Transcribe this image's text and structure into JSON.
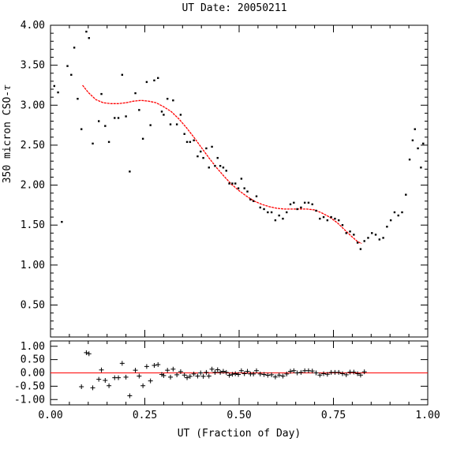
{
  "chart_data": [
    {
      "type": "scatter",
      "title": "UT Date: 20050211",
      "xlabel": "UT (Fraction of Day)",
      "ylabel": "350 micron CSO-",
      "ylabel_symbol": "τ",
      "xlim": [
        0.0,
        1.0
      ],
      "ylim": [
        0.1,
        4.0
      ],
      "x_ticks": [
        "0.00",
        "0.25",
        "0.50",
        "0.75",
        "1.00"
      ],
      "y_ticks": [
        "0.50",
        "1.00",
        "1.50",
        "2.00",
        "2.50",
        "3.00",
        "3.50",
        "4.00"
      ],
      "grid": false,
      "series": [
        {
          "role": "measurements",
          "marker": "dot",
          "color": "#000000",
          "points": [
            [
              0.01,
              3.24
            ],
            [
              0.02,
              3.16
            ],
            [
              0.03,
              1.54
            ],
            [
              0.045,
              3.49
            ],
            [
              0.055,
              3.38
            ],
            [
              0.063,
              3.72
            ],
            [
              0.072,
              3.08
            ],
            [
              0.082,
              2.7
            ],
            [
              0.095,
              3.92
            ],
            [
              0.102,
              3.84
            ],
            [
              0.112,
              2.52
            ],
            [
              0.128,
              2.8
            ],
            [
              0.135,
              3.14
            ],
            [
              0.145,
              2.74
            ],
            [
              0.155,
              2.54
            ],
            [
              0.17,
              2.84
            ],
            [
              0.18,
              2.84
            ],
            [
              0.19,
              3.38
            ],
            [
              0.2,
              2.86
            ],
            [
              0.21,
              2.17
            ],
            [
              0.225,
              3.15
            ],
            [
              0.235,
              2.94
            ],
            [
              0.245,
              2.58
            ],
            [
              0.255,
              3.29
            ],
            [
              0.265,
              2.75
            ],
            [
              0.275,
              3.31
            ],
            [
              0.285,
              3.34
            ],
            [
              0.295,
              2.92
            ],
            [
              0.3,
              2.88
            ],
            [
              0.31,
              3.08
            ],
            [
              0.318,
              2.76
            ],
            [
              0.325,
              3.06
            ],
            [
              0.335,
              2.76
            ],
            [
              0.345,
              2.88
            ],
            [
              0.355,
              2.64
            ],
            [
              0.362,
              2.54
            ],
            [
              0.37,
              2.54
            ],
            [
              0.38,
              2.56
            ],
            [
              0.39,
              2.36
            ],
            [
              0.398,
              2.42
            ],
            [
              0.405,
              2.34
            ],
            [
              0.413,
              2.46
            ],
            [
              0.42,
              2.22
            ],
            [
              0.428,
              2.48
            ],
            [
              0.436,
              2.24
            ],
            [
              0.443,
              2.34
            ],
            [
              0.45,
              2.24
            ],
            [
              0.458,
              2.22
            ],
            [
              0.466,
              2.18
            ],
            [
              0.474,
              2.02
            ],
            [
              0.482,
              2.02
            ],
            [
              0.49,
              2.02
            ],
            [
              0.498,
              1.96
            ],
            [
              0.506,
              2.08
            ],
            [
              0.514,
              1.96
            ],
            [
              0.522,
              1.92
            ],
            [
              0.53,
              1.82
            ],
            [
              0.538,
              1.8
            ],
            [
              0.546,
              1.86
            ],
            [
              0.556,
              1.72
            ],
            [
              0.566,
              1.7
            ],
            [
              0.576,
              1.66
            ],
            [
              0.586,
              1.66
            ],
            [
              0.596,
              1.56
            ],
            [
              0.606,
              1.62
            ],
            [
              0.616,
              1.58
            ],
            [
              0.626,
              1.66
            ],
            [
              0.636,
              1.76
            ],
            [
              0.645,
              1.78
            ],
            [
              0.654,
              1.7
            ],
            [
              0.664,
              1.72
            ],
            [
              0.674,
              1.78
            ],
            [
              0.684,
              1.78
            ],
            [
              0.694,
              1.76
            ],
            [
              0.704,
              1.68
            ],
            [
              0.714,
              1.58
            ],
            [
              0.724,
              1.6
            ],
            [
              0.734,
              1.56
            ],
            [
              0.744,
              1.6
            ],
            [
              0.754,
              1.58
            ],
            [
              0.764,
              1.56
            ],
            [
              0.774,
              1.5
            ],
            [
              0.784,
              1.4
            ],
            [
              0.794,
              1.42
            ],
            [
              0.804,
              1.38
            ],
            [
              0.814,
              1.28
            ],
            [
              0.822,
              1.2
            ],
            [
              0.832,
              1.3
            ],
            [
              0.842,
              1.34
            ],
            [
              0.852,
              1.4
            ],
            [
              0.862,
              1.38
            ],
            [
              0.872,
              1.32
            ],
            [
              0.882,
              1.34
            ],
            [
              0.892,
              1.48
            ],
            [
              0.902,
              1.56
            ],
            [
              0.912,
              1.66
            ],
            [
              0.922,
              1.62
            ],
            [
              0.932,
              1.66
            ],
            [
              0.942,
              1.88
            ],
            [
              0.952,
              2.32
            ],
            [
              0.96,
              2.56
            ],
            [
              0.966,
              2.7
            ],
            [
              0.974,
              2.46
            ],
            [
              0.982,
              2.22
            ],
            [
              0.988,
              2.52
            ]
          ]
        },
        {
          "role": "fit",
          "marker": "line",
          "color": "#ff0000",
          "x": [
            0.085,
            0.1,
            0.12,
            0.14,
            0.16,
            0.18,
            0.2,
            0.22,
            0.24,
            0.26,
            0.28,
            0.3,
            0.32,
            0.34,
            0.36,
            0.38,
            0.4,
            0.42,
            0.44,
            0.46,
            0.48,
            0.5,
            0.52,
            0.54,
            0.56,
            0.58,
            0.6,
            0.62,
            0.64,
            0.66,
            0.68,
            0.7,
            0.72,
            0.74,
            0.76,
            0.78,
            0.8,
            0.815,
            0.825
          ],
          "y": [
            3.25,
            3.16,
            3.07,
            3.03,
            3.02,
            3.02,
            3.03,
            3.05,
            3.06,
            3.05,
            3.03,
            2.98,
            2.92,
            2.83,
            2.72,
            2.6,
            2.47,
            2.34,
            2.22,
            2.11,
            2.01,
            1.93,
            1.86,
            1.8,
            1.76,
            1.73,
            1.71,
            1.7,
            1.7,
            1.7,
            1.7,
            1.69,
            1.65,
            1.6,
            1.53,
            1.44,
            1.35,
            1.29,
            1.27
          ]
        }
      ]
    },
    {
      "type": "scatter",
      "title": "",
      "xlabel": "UT (Fraction of Day)",
      "ylabel": "",
      "xlim": [
        0.0,
        1.0
      ],
      "ylim": [
        -1.2,
        1.2
      ],
      "x_ticks": [
        "0.00",
        "0.25",
        "0.50",
        "0.75",
        "1.00"
      ],
      "y_ticks": [
        "1.00",
        "0.50",
        "0.00",
        "-0.50",
        "-1.00"
      ],
      "grid": false,
      "reference_line": {
        "y": 0.0,
        "color": "#ff0000"
      },
      "series": [
        {
          "role": "residuals",
          "marker": "plus",
          "color": "#000000",
          "points": [
            [
              0.082,
              -0.52
            ],
            [
              0.095,
              0.76
            ],
            [
              0.102,
              0.72
            ],
            [
              0.112,
              -0.56
            ],
            [
              0.128,
              -0.24
            ],
            [
              0.135,
              0.11
            ],
            [
              0.145,
              -0.28
            ],
            [
              0.155,
              -0.48
            ],
            [
              0.17,
              -0.18
            ],
            [
              0.18,
              -0.18
            ],
            [
              0.19,
              0.36
            ],
            [
              0.2,
              -0.16
            ],
            [
              0.21,
              -0.86
            ],
            [
              0.225,
              0.1
            ],
            [
              0.235,
              -0.12
            ],
            [
              0.245,
              -0.48
            ],
            [
              0.255,
              0.24
            ],
            [
              0.265,
              -0.3
            ],
            [
              0.275,
              0.28
            ],
            [
              0.285,
              0.31
            ],
            [
              0.295,
              -0.06
            ],
            [
              0.3,
              -0.1
            ],
            [
              0.31,
              0.1
            ],
            [
              0.318,
              -0.16
            ],
            [
              0.325,
              0.14
            ],
            [
              0.335,
              -0.07
            ],
            [
              0.345,
              0.05
            ],
            [
              0.355,
              -0.08
            ],
            [
              0.362,
              -0.18
            ],
            [
              0.37,
              -0.13
            ],
            [
              0.38,
              -0.04
            ],
            [
              0.39,
              -0.12
            ],
            [
              0.398,
              0.0
            ],
            [
              0.405,
              -0.13
            ],
            [
              0.413,
              0.02
            ],
            [
              0.42,
              -0.12
            ],
            [
              0.428,
              0.14
            ],
            [
              0.436,
              0.02
            ],
            [
              0.443,
              0.12
            ],
            [
              0.45,
              0.02
            ],
            [
              0.458,
              0.06
            ],
            [
              0.466,
              0.02
            ],
            [
              0.474,
              -0.09
            ],
            [
              0.482,
              -0.05
            ],
            [
              0.49,
              -0.03
            ],
            [
              0.498,
              -0.06
            ],
            [
              0.506,
              0.08
            ],
            [
              0.514,
              -0.03
            ],
            [
              0.522,
              0.06
            ],
            [
              0.53,
              -0.04
            ],
            [
              0.538,
              -0.04
            ],
            [
              0.546,
              0.08
            ],
            [
              0.556,
              -0.04
            ],
            [
              0.566,
              -0.06
            ],
            [
              0.576,
              -0.09
            ],
            [
              0.586,
              -0.07
            ],
            [
              0.596,
              -0.15
            ],
            [
              0.606,
              -0.08
            ],
            [
              0.616,
              -0.12
            ],
            [
              0.626,
              -0.04
            ],
            [
              0.636,
              0.06
            ],
            [
              0.645,
              0.08
            ],
            [
              0.654,
              0.0
            ],
            [
              0.664,
              0.02
            ],
            [
              0.674,
              0.08
            ],
            [
              0.684,
              0.08
            ],
            [
              0.694,
              0.07
            ],
            [
              0.704,
              0.0
            ],
            [
              0.714,
              -0.08
            ],
            [
              0.724,
              -0.03
            ],
            [
              0.734,
              -0.05
            ],
            [
              0.744,
              0.02
            ],
            [
              0.754,
              0.02
            ],
            [
              0.764,
              0.02
            ],
            [
              0.774,
              -0.03
            ],
            [
              0.784,
              -0.07
            ],
            [
              0.794,
              0.03
            ],
            [
              0.804,
              0.03
            ],
            [
              0.814,
              -0.03
            ],
            [
              0.822,
              -0.08
            ],
            [
              0.832,
              0.04
            ]
          ]
        }
      ]
    }
  ]
}
